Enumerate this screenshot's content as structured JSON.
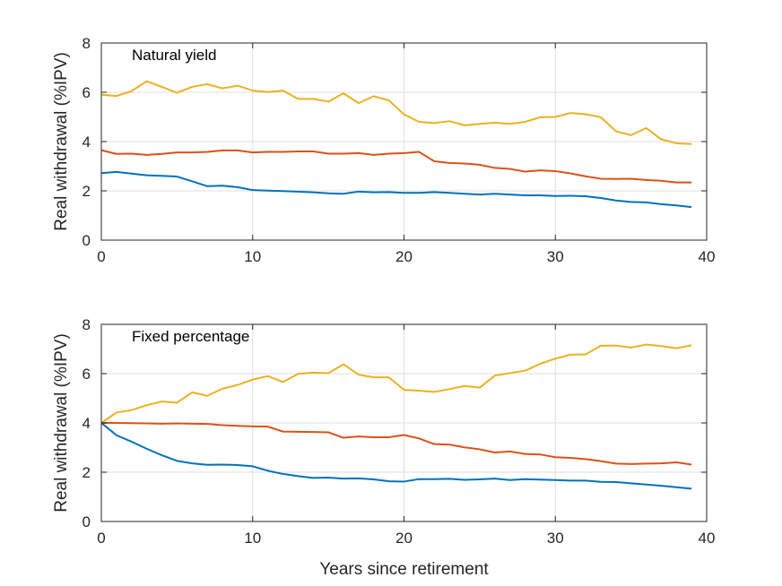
{
  "chart_data": [
    {
      "type": "line",
      "title": "Natural yield",
      "xlabel": "",
      "ylabel": "Real withdrawal (%IPV)",
      "xlim": [
        0,
        40
      ],
      "ylim": [
        0,
        8
      ],
      "xticks": [
        0,
        10,
        20,
        30,
        40
      ],
      "yticks": [
        0,
        2,
        4,
        6,
        8
      ],
      "xtick_labels": [
        "0",
        "10",
        "20",
        "30",
        "40"
      ],
      "ytick_labels": [
        "0",
        "2",
        "4",
        "6",
        "8"
      ],
      "grid": true,
      "x": [
        0,
        1,
        2,
        3,
        4,
        5,
        6,
        7,
        8,
        9,
        10,
        11,
        12,
        13,
        14,
        15,
        16,
        17,
        18,
        19,
        20,
        21,
        22,
        23,
        24,
        25,
        26,
        27,
        28,
        29,
        30,
        31,
        32,
        33,
        34,
        35,
        36,
        37,
        38,
        39
      ],
      "series": [
        {
          "color": "#EDB120",
          "values": [
            5.9,
            5.85,
            6.05,
            6.45,
            6.22,
            5.98,
            6.22,
            6.33,
            6.16,
            6.27,
            6.07,
            6.01,
            6.07,
            5.73,
            5.73,
            5.62,
            5.96,
            5.56,
            5.84,
            5.67,
            5.1,
            4.8,
            4.75,
            4.83,
            4.66,
            4.72,
            4.77,
            4.72,
            4.8,
            4.99,
            5.0,
            5.16,
            5.11,
            4.99,
            4.42,
            4.26,
            4.55,
            4.09,
            3.93,
            3.9
          ]
        },
        {
          "color": "#D95319",
          "values": [
            3.65,
            3.5,
            3.51,
            3.46,
            3.5,
            3.56,
            3.56,
            3.58,
            3.64,
            3.64,
            3.56,
            3.58,
            3.58,
            3.6,
            3.6,
            3.51,
            3.51,
            3.53,
            3.46,
            3.51,
            3.53,
            3.58,
            3.2,
            3.13,
            3.11,
            3.06,
            2.93,
            2.89,
            2.78,
            2.83,
            2.8,
            2.71,
            2.59,
            2.49,
            2.48,
            2.49,
            2.44,
            2.41,
            2.34,
            2.34
          ]
        },
        {
          "color": "#0072BD",
          "values": [
            2.72,
            2.77,
            2.7,
            2.63,
            2.61,
            2.58,
            2.39,
            2.19,
            2.21,
            2.15,
            2.03,
            2.01,
            1.99,
            1.97,
            1.94,
            1.9,
            1.88,
            1.97,
            1.94,
            1.95,
            1.92,
            1.92,
            1.95,
            1.92,
            1.88,
            1.85,
            1.88,
            1.85,
            1.82,
            1.82,
            1.79,
            1.8,
            1.78,
            1.71,
            1.61,
            1.55,
            1.53,
            1.46,
            1.41,
            1.34
          ]
        }
      ]
    },
    {
      "type": "line",
      "title": "Fixed percentage",
      "xlabel": "Years since retirement",
      "ylabel": "Real withdrawal (%IPV)",
      "xlim": [
        0,
        40
      ],
      "ylim": [
        0,
        8
      ],
      "xticks": [
        0,
        10,
        20,
        30,
        40
      ],
      "yticks": [
        0,
        2,
        4,
        6,
        8
      ],
      "xtick_labels": [
        "0",
        "10",
        "20",
        "30",
        "40"
      ],
      "ytick_labels": [
        "0",
        "2",
        "4",
        "6",
        "8"
      ],
      "grid": true,
      "x": [
        0,
        1,
        2,
        3,
        4,
        5,
        6,
        7,
        8,
        9,
        10,
        11,
        12,
        13,
        14,
        15,
        16,
        17,
        18,
        19,
        20,
        21,
        22,
        23,
        24,
        25,
        26,
        27,
        28,
        29,
        30,
        31,
        32,
        33,
        34,
        35,
        36,
        37,
        38,
        39
      ],
      "series": [
        {
          "color": "#EDB120",
          "values": [
            4.0,
            4.42,
            4.52,
            4.72,
            4.87,
            4.82,
            5.24,
            5.1,
            5.39,
            5.54,
            5.76,
            5.9,
            5.66,
            5.99,
            6.04,
            6.02,
            6.38,
            5.96,
            5.85,
            5.85,
            5.34,
            5.31,
            5.26,
            5.37,
            5.5,
            5.43,
            5.92,
            6.02,
            6.12,
            6.4,
            6.61,
            6.77,
            6.78,
            7.13,
            7.14,
            7.06,
            7.18,
            7.12,
            7.03,
            7.15
          ]
        },
        {
          "color": "#D95319",
          "values": [
            4.0,
            4.0,
            3.99,
            3.98,
            3.97,
            3.98,
            3.97,
            3.96,
            3.91,
            3.88,
            3.86,
            3.85,
            3.65,
            3.64,
            3.63,
            3.62,
            3.4,
            3.45,
            3.42,
            3.42,
            3.51,
            3.37,
            3.14,
            3.12,
            3.01,
            2.93,
            2.8,
            2.84,
            2.74,
            2.72,
            2.61,
            2.58,
            2.53,
            2.45,
            2.35,
            2.33,
            2.35,
            2.36,
            2.4,
            2.31
          ]
        },
        {
          "color": "#0072BD",
          "values": [
            4.0,
            3.5,
            3.24,
            2.95,
            2.69,
            2.46,
            2.36,
            2.3,
            2.31,
            2.29,
            2.24,
            2.06,
            1.93,
            1.84,
            1.77,
            1.78,
            1.74,
            1.75,
            1.71,
            1.63,
            1.62,
            1.72,
            1.72,
            1.73,
            1.69,
            1.71,
            1.74,
            1.68,
            1.72,
            1.7,
            1.68,
            1.66,
            1.66,
            1.61,
            1.6,
            1.55,
            1.5,
            1.45,
            1.39,
            1.33
          ]
        }
      ]
    }
  ]
}
